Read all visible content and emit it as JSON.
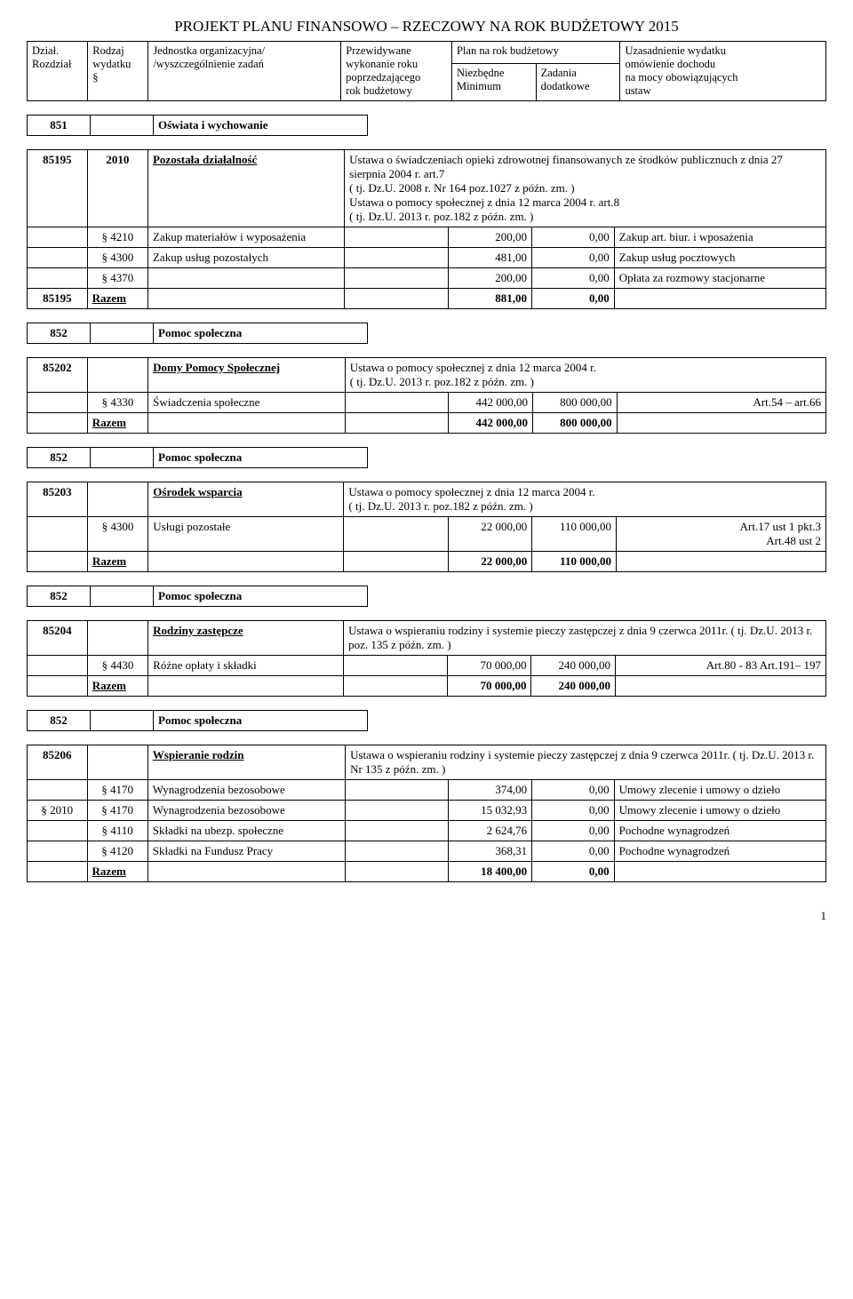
{
  "title": "PROJEKT PLANU FINANSOWO – RZECZOWY NA ROK BUDŻETOWY 2015",
  "header": {
    "c1a": "Dział.",
    "c1b": "Rozdział",
    "c2a": "Rodzaj",
    "c2b": "wydatku",
    "c2c": "§",
    "c3a": "Jednostka organizacyjna/",
    "c3b": "/wyszczególnienie zadań",
    "c4a": "Przewidywane",
    "c4b": "wykonanie roku",
    "c4c": "poprzedzającego",
    "c4d": "rok budżetowy",
    "c5": "Plan na rok budżetowy",
    "c5_1a": "Niezbędne",
    "c5_1b": "Minimum",
    "c5_2a": "Zadania",
    "c5_2b": "dodatkowe",
    "c6a": "Uzasadnienie wydatku",
    "c6b": "omówienie dochodu",
    "c6c": "na mocy obowiązujących",
    "c6d": "ustaw"
  },
  "sec851": {
    "code": "851",
    "title": "Oświata i wychowanie"
  },
  "r85195": {
    "rozdzial": "85195",
    "rodzaj": "2010",
    "jednostka": "Pozostała działalność",
    "ustawa1": "Ustawa o świadczeniach opieki zdrowotnej finansowanych ze środków publicznuch z dnia 27 sierpnia 2004 r. art.7",
    "ustawa2": "( tj. Dz.U. 2008 r.  Nr 164 poz.1027 z późn. zm. )",
    "ustawa3": "Ustawa o pomocy społecznej z dnia 12 marca 2004 r. art.8",
    "ustawa4": "( tj. Dz.U. 2013 r.  poz.182 z późn. zm. )",
    "row1": {
      "par": "§ 4210",
      "desc": "Zakup materiałów i wyposażenia",
      "v1": "200,00",
      "v2": "0,00",
      "uzas": "Zakup art. biur. i wposażenia"
    },
    "row2": {
      "par": "§ 4300",
      "desc": "Zakup usług pozostałych",
      "v1": "481,00",
      "v2": "0,00",
      "uzas": "Zakup usług pocztowych"
    },
    "row3": {
      "par": "§ 4370",
      "desc": "",
      "v1": "200,00",
      "v2": "0,00",
      "uzas": "Opłata za rozmowy stacjonarne"
    },
    "sum": {
      "rozdzial": "85195",
      "label": "Razem",
      "v1": "881,00",
      "v2": "0,00"
    }
  },
  "sec852a": {
    "code": "852",
    "title": "Pomoc społeczna"
  },
  "r85202": {
    "rozdzial": "85202",
    "jednostka": "Domy Pomocy Społecznej",
    "ustawa1": "Ustawa o pomocy społecznej z dnia 12 marca 2004 r.",
    "ustawa2": "( tj. Dz.U. 2013 r. poz.182 z późn. zm. )",
    "row1": {
      "par": "§ 4330",
      "desc": "Świadczenia społeczne",
      "v1": "442 000,00",
      "v2": "800 000,00",
      "uzas": "Art.54 – art.66"
    },
    "sum": {
      "label": "Razem",
      "v1": "442 000,00",
      "v2": "800 000,00"
    }
  },
  "sec852b": {
    "code": "852",
    "title": "Pomoc społeczna"
  },
  "r85203": {
    "rozdzial": "85203",
    "jednostka": "Ośrodek  wsparcia",
    "ustawa1": "Ustawa o pomocy społecznej z dnia 12 marca 2004 r.",
    "ustawa2": "( tj. Dz.U. 2013 r. poz.182  z późn. zm. )",
    "row1": {
      "par": "§ 4300",
      "desc": "Usługi pozostałe",
      "v1": "22 000,00",
      "v2": "110 000,00",
      "uzas1": "Art.17 ust 1 pkt.3",
      "uzas2": "Art.48 ust 2"
    },
    "sum": {
      "label": "Razem",
      "v1": "22 000,00",
      "v2": "110 000,00"
    }
  },
  "sec852c": {
    "code": "852",
    "title": "Pomoc społeczna"
  },
  "r85204": {
    "rozdzial": "85204",
    "jednostka": "Rodziny zastępcze",
    "ustawa": "Ustawa o wspieraniu rodziny i systemie pieczy zastępczej z dnia 9 czerwca 2011r. ( tj. Dz.U. 2013 r. poz. 135 z  późn. zm. )",
    "row1": {
      "par": "§ 4430",
      "desc": "Różne opłaty i składki",
      "v1": "70 000,00",
      "v2": "240 000,00",
      "uzas": "Art.80 - 83 Art.191– 197"
    },
    "sum": {
      "label": "Razem",
      "v1": "70 000,00",
      "v2": "240 000,00"
    }
  },
  "sec852d": {
    "code": "852",
    "title": "Pomoc społeczna"
  },
  "r85206": {
    "rozdzial": "85206",
    "jednostka": "Wspieranie rodzin",
    "ustawa": "Ustawa o wspieraniu rodziny i systemie pieczy zastępczej z dnia 9 czerwca 2011r. ( tj. Dz.U. 2013 r. Nr 135 z późn. zm. )",
    "row1": {
      "par": "§ 4170",
      "desc": "Wynagrodzenia bezosobowe",
      "v1": "374,00",
      "v2": "0,00",
      "uzas": "Umowy zlecenie i umowy o dzieło"
    },
    "row2": {
      "rodzaj": "§ 2010",
      "par": "§ 4170",
      "desc": "Wynagrodzenia bezosobowe",
      "v1": "15 032,93",
      "v2": "0,00",
      "uzas": "Umowy zlecenie i umowy o dzieło"
    },
    "row3": {
      "par": "§ 4110",
      "desc": "Składki na ubezp. społeczne",
      "v1": "2 624,76",
      "v2": "0,00",
      "uzas": "Pochodne wynagrodzeń"
    },
    "row4": {
      "par": "§ 4120",
      "desc": "Składki na Fundusz Pracy",
      "v1": "368,31",
      "v2": "0,00",
      "uzas": "Pochodne wynagrodzeń"
    },
    "sum": {
      "label": "Razem",
      "v1": "18 400,00",
      "v2": "0,00"
    }
  },
  "pageNum": "1"
}
